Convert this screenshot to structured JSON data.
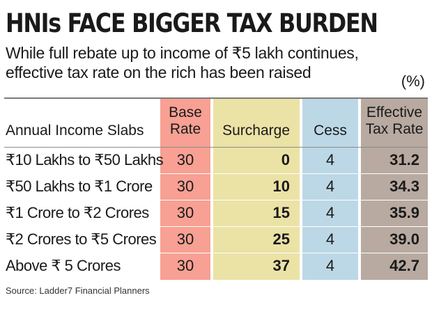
{
  "title": "HNIs FACE BIGGER TAX BURDEN",
  "subtitle_line1": "While full rebate up to income of ₹5 lakh continues,",
  "subtitle_line2": "effective tax rate on the rich has been raised",
  "unit": "(%)",
  "source": "Source: Ladder7 Financial Planners",
  "colors": {
    "base_rate": "#f7a093",
    "surcharge": "#ebe2a5",
    "cess": "#bcd8e6",
    "effective": "#b8aaa1"
  },
  "chart_data": {
    "type": "table",
    "columns": [
      {
        "key": "slab",
        "label": "Annual Income Slabs"
      },
      {
        "key": "base",
        "label_line1": "Base",
        "label_line2": "Rate"
      },
      {
        "key": "surcharge",
        "label": "Surcharge"
      },
      {
        "key": "cess",
        "label": "Cess"
      },
      {
        "key": "effective",
        "label_line1": "Effective",
        "label_line2": "Tax Rate"
      }
    ],
    "rows": [
      {
        "slab": "₹10 Lakhs to ₹50 Lakhs",
        "base": "30",
        "surcharge": "0",
        "cess": "4",
        "effective": "31.2"
      },
      {
        "slab": "₹50 Lakhs to ₹1 Crore",
        "base": "30",
        "surcharge": "10",
        "cess": "4",
        "effective": "34.3"
      },
      {
        "slab": "₹1 Crore to ₹2 Crores",
        "base": "30",
        "surcharge": "15",
        "cess": "4",
        "effective": "35.9"
      },
      {
        "slab": "₹2 Crores to ₹5 Crores",
        "base": "30",
        "surcharge": "25",
        "cess": "4",
        "effective": "39.0"
      },
      {
        "slab": "Above ₹ 5 Crores",
        "base": "30",
        "surcharge": "37",
        "cess": "4",
        "effective": "42.7"
      }
    ]
  }
}
